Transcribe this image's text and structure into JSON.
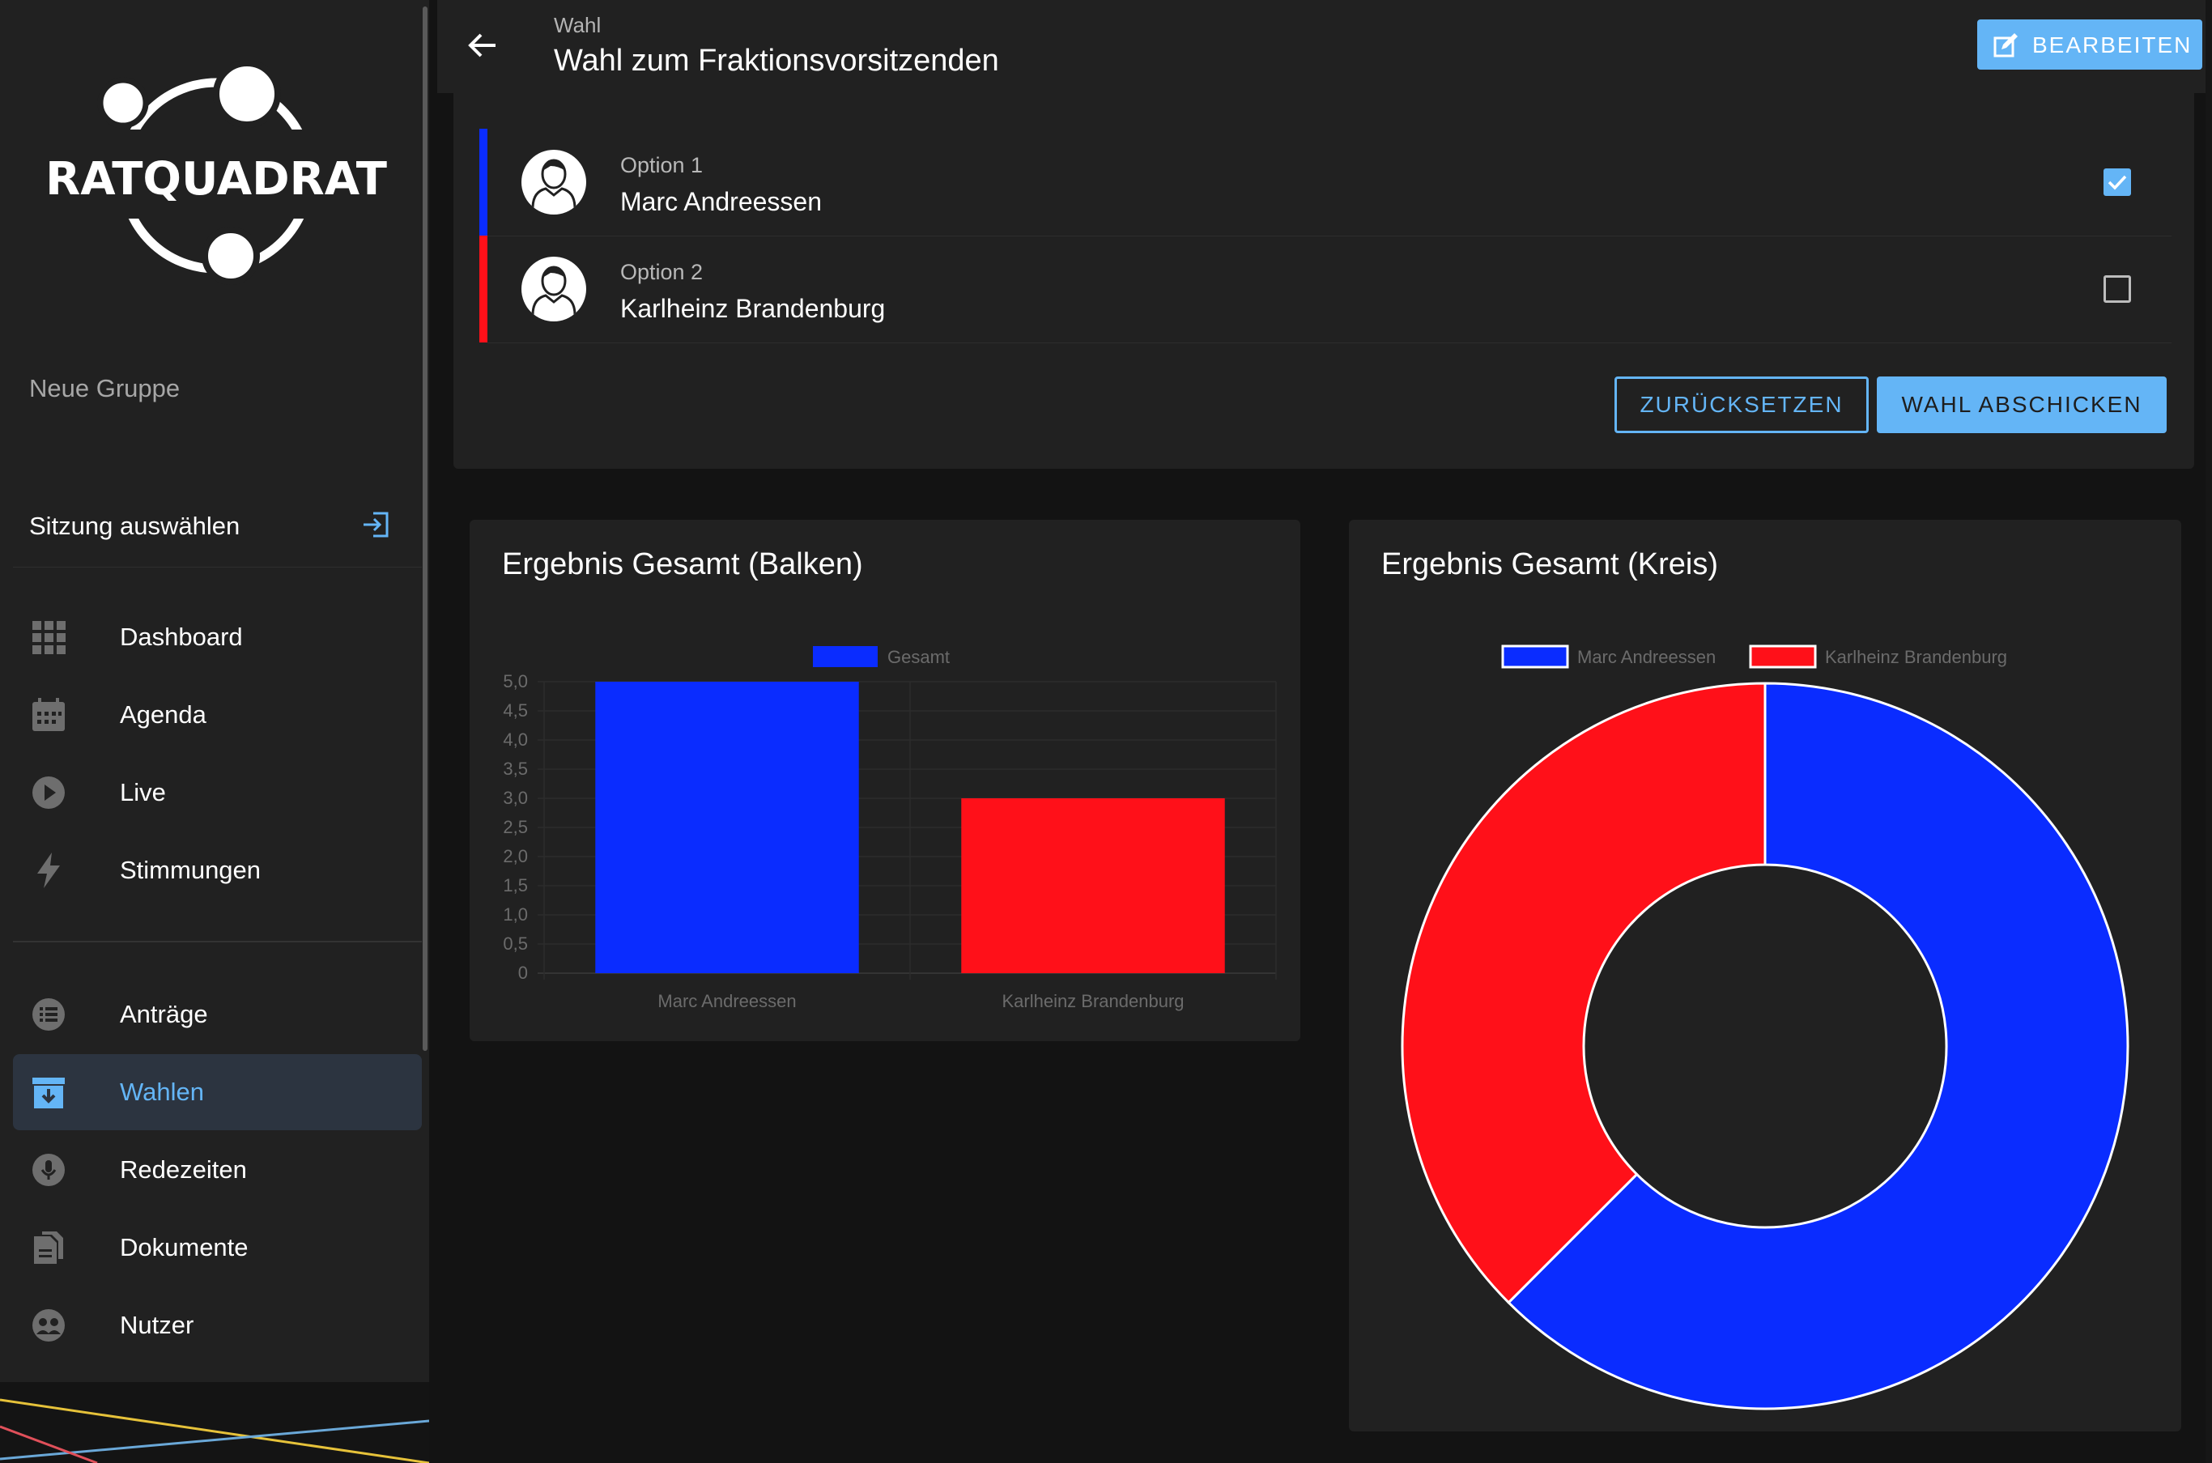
{
  "sidebar": {
    "logo_text": "RATQUADRAT",
    "group_name": "Neue Gruppe",
    "session_select_label": "Sitzung auswählen",
    "nav_primary": [
      {
        "label": "Dashboard",
        "icon": "grid-icon"
      },
      {
        "label": "Agenda",
        "icon": "calendar-icon"
      },
      {
        "label": "Live",
        "icon": "play-circle-icon"
      },
      {
        "label": "Stimmungen",
        "icon": "lightning-icon"
      }
    ],
    "nav_secondary": [
      {
        "label": "Anträge",
        "icon": "list-circle-icon"
      },
      {
        "label": "Wahlen",
        "icon": "ballot-box-icon",
        "active": true
      },
      {
        "label": "Redezeiten",
        "icon": "microphone-icon"
      },
      {
        "label": "Dokumente",
        "icon": "documents-icon"
      },
      {
        "label": "Nutzer",
        "icon": "users-icon"
      }
    ]
  },
  "header": {
    "breadcrumb": "Wahl",
    "title": "Wahl zum Fraktionsvorsitzenden",
    "edit_label": "BEARBEITEN"
  },
  "vote": {
    "options": [
      {
        "kicker": "Option 1",
        "name": "Marc Andreessen",
        "color": "#0a2cff",
        "checked": true
      },
      {
        "kicker": "Option 2",
        "name": "Karlheinz Brandenburg",
        "color": "#ff1019",
        "checked": false
      }
    ],
    "reset_label": "ZURÜCKSETZEN",
    "submit_label": "WAHL ABSCHICKEN"
  },
  "bar_card": {
    "title": "Ergebnis Gesamt (Balken)"
  },
  "pie_card": {
    "title": "Ergebnis Gesamt (Kreis)"
  },
  "colors": {
    "accent": "#64b5f6",
    "blue": "#0a2cff",
    "red": "#ff1019"
  },
  "chart_data": [
    {
      "type": "bar",
      "title": "Ergebnis Gesamt (Balken)",
      "categories": [
        "Marc Andreessen",
        "Karlheinz Brandenburg"
      ],
      "series": [
        {
          "name": "Gesamt",
          "values": [
            5,
            3
          ]
        }
      ],
      "bar_colors": [
        "#0a2cff",
        "#ff1019"
      ],
      "ylim": [
        0,
        5
      ],
      "yticks": [
        "0",
        "0,5",
        "1,0",
        "1,5",
        "2,0",
        "2,5",
        "3,0",
        "3,5",
        "4,0",
        "4,5",
        "5,0"
      ],
      "legend": "top",
      "grid": true
    },
    {
      "type": "pie",
      "title": "Ergebnis Gesamt (Kreis)",
      "categories": [
        "Marc Andreessen",
        "Karlheinz Brandenburg"
      ],
      "values": [
        5,
        3
      ],
      "colors": [
        "#0a2cff",
        "#ff1019"
      ],
      "doughnut": true,
      "legend": "top"
    }
  ]
}
